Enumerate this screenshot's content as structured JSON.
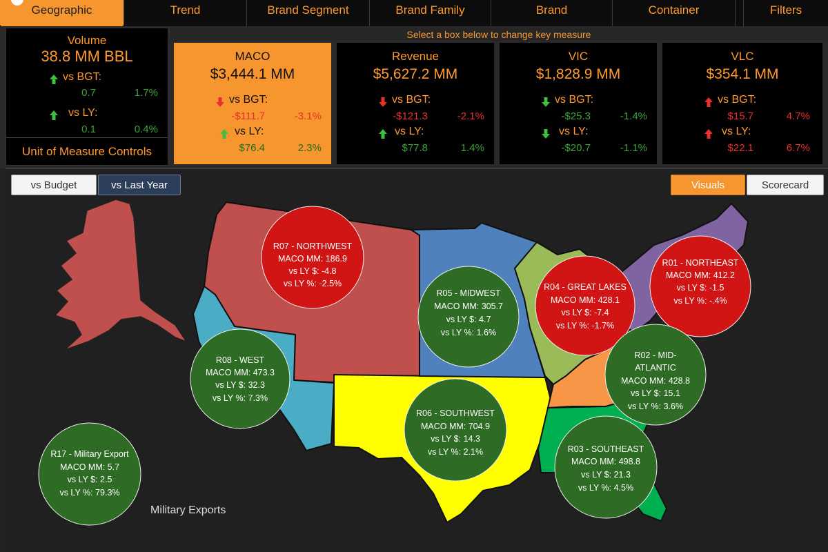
{
  "tabs": [
    {
      "label": "Geographic",
      "active": true
    },
    {
      "label": "Trend"
    },
    {
      "label": "Brand Segment"
    },
    {
      "label": "Brand Family"
    },
    {
      "label": "Brand"
    },
    {
      "label": "Container"
    },
    {
      "label": ""
    },
    {
      "label": "Filters"
    }
  ],
  "volume": {
    "title": "Volume",
    "value": "38.8 MM BBL",
    "vs_bgt_label": "vs BGT:",
    "vs_bgt_abs": "0.7",
    "vs_bgt_pct": "1.7%",
    "vs_ly_label": "vs LY:",
    "vs_ly_abs": "0.1",
    "vs_ly_pct": "0.4%"
  },
  "uom_label": "Unit of Measure Controls",
  "select_hint": "Select a box below to change key measure",
  "kpis": [
    {
      "title": "MACO",
      "value": "$3,444.1 MM",
      "bgt_label": "vs BGT:",
      "bgt_abs": "-$111.7",
      "bgt_pct": "-3.1%",
      "ly_label": "vs LY:",
      "ly_abs": "$76.4",
      "ly_pct": "2.3%"
    },
    {
      "title": "Revenue",
      "value": "$5,627.2 MM",
      "bgt_label": "vs BGT:",
      "bgt_abs": "-$121.3",
      "bgt_pct": "-2.1%",
      "ly_label": "vs LY:",
      "ly_abs": "$77.8",
      "ly_pct": "1.4%"
    },
    {
      "title": "VIC",
      "value": "$1,828.9 MM",
      "bgt_label": "vs BGT:",
      "bgt_abs": "-$25.3",
      "bgt_pct": "-1.4%",
      "ly_label": "vs LY:",
      "ly_abs": "-$20.7",
      "ly_pct": "-1.1%"
    },
    {
      "title": "VLC",
      "value": "$354.1 MM",
      "bgt_label": "vs BGT:",
      "bgt_abs": "$15.7",
      "bgt_pct": "4.7%",
      "ly_label": "vs LY:",
      "ly_abs": "$22.1",
      "ly_pct": "6.7%"
    }
  ],
  "buttons": {
    "vs_budget": "vs Budget",
    "vs_last_year": "vs Last Year",
    "visuals": "Visuals",
    "scorecard": "Scorecard"
  },
  "colors": {
    "accent": "#f7952f",
    "good": "#2e6b24",
    "bad": "#d11515",
    "region_northwest": "#c0504d",
    "region_west": "#4bacc6",
    "region_midwest": "#4f81bd",
    "region_great_lakes": "#9bbb59",
    "region_northeast": "#8064a2",
    "region_mid_atlantic": "#f79646",
    "region_southwest": "#ffff00",
    "region_southeast": "#00b050"
  },
  "regions": [
    {
      "name": "R07 - NORTHWEST",
      "maco": "MACO MM: 186.9",
      "ly_abs": "vs LY $: -4.8",
      "ly_pct": "vs LY %: -2.5%",
      "status": "bad"
    },
    {
      "name": "R05 - MIDWEST",
      "maco": "MACO MM: 305.7",
      "ly_abs": "vs LY $: 4.7",
      "ly_pct": "vs LY %: 1.6%",
      "status": "good"
    },
    {
      "name": "R04 - GREAT LAKES",
      "maco": "MACO MM: 428.1",
      "ly_abs": "vs LY $: -7.4",
      "ly_pct": "vs LY %: -1.7%",
      "status": "bad"
    },
    {
      "name": "R01 - NORTHEAST",
      "maco": "MACO MM: 412.2",
      "ly_abs": "vs LY $: -1.5",
      "ly_pct": "vs LY %: -.4%",
      "status": "bad"
    },
    {
      "name": "R08 - WEST",
      "maco": "MACO MM: 473.3",
      "ly_abs": "vs LY $: 32.3",
      "ly_pct": "vs LY %: 7.3%",
      "status": "good"
    },
    {
      "name_line1": "R02 - MID-",
      "name_line2": "ATLANTIC",
      "maco": "MACO MM: 428.8",
      "ly_abs": "vs LY $: 15.1",
      "ly_pct": "vs LY %: 3.6%",
      "status": "good"
    },
    {
      "name": "R06 - SOUTHWEST",
      "maco": "MACO MM: 704.9",
      "ly_abs": "vs LY $: 14.3",
      "ly_pct": "vs LY %: 2.1%",
      "status": "good"
    },
    {
      "name": "R03 - SOUTHEAST",
      "maco": "MACO MM: 498.8",
      "ly_abs": "vs LY $: 21.3",
      "ly_pct": "vs LY %: 4.5%",
      "status": "good"
    },
    {
      "name": "R17 - Military Export",
      "maco": "MACO MM: 5.7",
      "ly_abs": "vs LY $: 2.5",
      "ly_pct": "vs LY %: 79.3%",
      "status": "good"
    }
  ],
  "military_label": "Military Exports"
}
